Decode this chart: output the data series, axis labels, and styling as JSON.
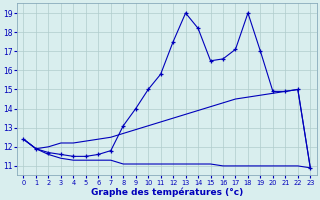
{
  "xlabel": "Graphe des températures (°c)",
  "x": [
    0,
    1,
    2,
    3,
    4,
    5,
    6,
    7,
    8,
    9,
    10,
    11,
    12,
    13,
    14,
    15,
    16,
    17,
    18,
    19,
    20,
    21,
    22,
    23
  ],
  "line_flat": [
    12.4,
    11.9,
    11.6,
    11.4,
    11.3,
    11.3,
    11.3,
    11.3,
    11.1,
    11.1,
    11.1,
    11.1,
    11.1,
    11.1,
    11.1,
    11.1,
    11.0,
    11.0,
    11.0,
    11.0,
    11.0,
    11.0,
    11.0,
    10.9
  ],
  "line_mid": [
    12.4,
    11.9,
    12.0,
    12.2,
    12.2,
    12.3,
    12.4,
    12.5,
    12.7,
    12.9,
    13.1,
    13.3,
    13.5,
    13.7,
    13.9,
    14.1,
    14.3,
    14.5,
    14.6,
    14.7,
    14.8,
    14.9,
    15.0,
    10.9
  ],
  "line_peak": [
    12.4,
    11.9,
    11.7,
    11.6,
    11.5,
    11.5,
    11.6,
    11.8,
    13.1,
    14.0,
    15.0,
    15.8,
    17.5,
    19.0,
    18.2,
    16.5,
    16.6,
    17.1,
    19.0,
    17.0,
    14.9,
    14.9,
    15.0,
    10.9
  ],
  "bg_color": "#d9eeee",
  "grid_color": "#b0cccc",
  "line_color": "#0000bb",
  "ylim": [
    10.5,
    19.5
  ],
  "yticks": [
    11,
    12,
    13,
    14,
    15,
    16,
    17,
    18,
    19
  ],
  "xticks": [
    0,
    1,
    2,
    3,
    4,
    5,
    6,
    7,
    8,
    9,
    10,
    11,
    12,
    13,
    14,
    15,
    16,
    17,
    18,
    19,
    20,
    21,
    22,
    23
  ]
}
